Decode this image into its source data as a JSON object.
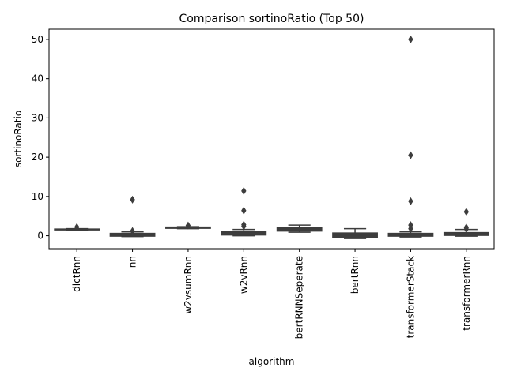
{
  "chart_data": {
    "type": "box",
    "title": "Comparison sortinoRatio (Top 50)",
    "xlabel": "algorithm",
    "ylabel": "sortinoRatio",
    "ylim": [
      -3.3,
      52.6
    ],
    "yticks": [
      0,
      10,
      20,
      30,
      40,
      50
    ],
    "grid": false,
    "legend": "none",
    "colors": {
      "box": "#3d3d3d",
      "spine": "#000000"
    },
    "categories": [
      "dictRnn",
      "nn",
      "w2vsumRnn",
      "w2vRnn",
      "bertRNNSeperate",
      "bertRnn",
      "transformerStack",
      "transformerRnn"
    ],
    "boxes": [
      {
        "q1": 1.5,
        "median": 1.6,
        "q3": 1.7,
        "whislo": 1.4,
        "whishi": 1.8,
        "fliers": [
          2.2
        ]
      },
      {
        "q1": -0.1,
        "median": 0.3,
        "q3": 0.6,
        "whislo": -0.2,
        "whishi": 1.0,
        "fliers": [
          9.2,
          1.2
        ]
      },
      {
        "q1": 1.9,
        "median": 2.0,
        "q3": 2.2,
        "whislo": 1.8,
        "whishi": 2.3,
        "fliers": [
          2.6
        ]
      },
      {
        "q1": 0.2,
        "median": 0.6,
        "q3": 1.0,
        "whislo": 0.0,
        "whishi": 1.6,
        "fliers": [
          11.4,
          6.4,
          2.4,
          2.8
        ]
      },
      {
        "q1": 1.2,
        "median": 1.6,
        "q3": 2.1,
        "whislo": 0.9,
        "whishi": 2.7,
        "fliers": []
      },
      {
        "q1": -0.4,
        "median": 0.2,
        "q3": 0.7,
        "whislo": -0.7,
        "whishi": 1.8,
        "fliers": []
      },
      {
        "q1": -0.1,
        "median": 0.2,
        "q3": 0.6,
        "whislo": -0.3,
        "whishi": 1.0,
        "fliers": [
          50.0,
          20.5,
          8.8,
          2.7,
          1.8
        ]
      },
      {
        "q1": 0.1,
        "median": 0.4,
        "q3": 0.8,
        "whislo": -0.1,
        "whishi": 1.6,
        "fliers": [
          6.1,
          2.1,
          1.7
        ]
      }
    ]
  }
}
